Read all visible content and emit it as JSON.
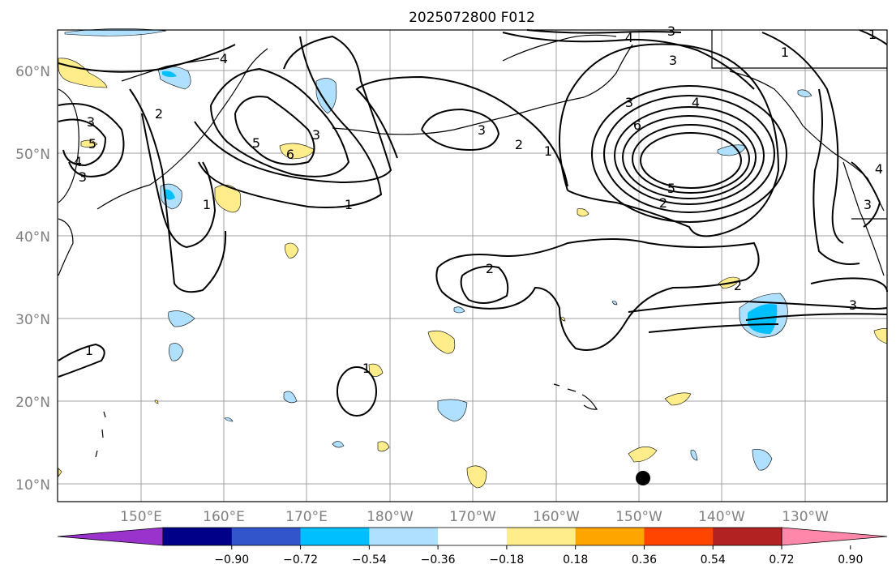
{
  "title": "2025072800 F012",
  "lat_labels": [
    "60°N",
    "50°N",
    "40°N",
    "30°N",
    "20°N",
    "10°N"
  ],
  "lon_labels": [
    "150°E",
    "160°E",
    "170°E",
    "180°W",
    "170°W",
    "160°W",
    "150°W",
    "140°W",
    "130°W"
  ],
  "contour_labels": [
    "1",
    "2",
    "3",
    "4",
    "5",
    "6"
  ],
  "colorbar": {
    "ticks": [
      "−0.90",
      "−0.72",
      "−0.54",
      "−0.36",
      "−0.18",
      "0.18",
      "0.36",
      "0.54",
      "0.72",
      "0.90"
    ],
    "colors": [
      "#9933cc",
      "#000088",
      "#3355cc",
      "#00bfff",
      "#b0e0ff",
      "#ffffff",
      "#ffec8b",
      "#ffa500",
      "#ff4500",
      "#b22222",
      "#ff88aa"
    ]
  },
  "colors": {
    "contour": "#000000",
    "grid": "#a0a0a0",
    "positive_shade": "#ffec8b",
    "negative_shade": "#b0e0ff",
    "strong_negative_shade": "#00bfff",
    "marker": "#000000"
  }
}
